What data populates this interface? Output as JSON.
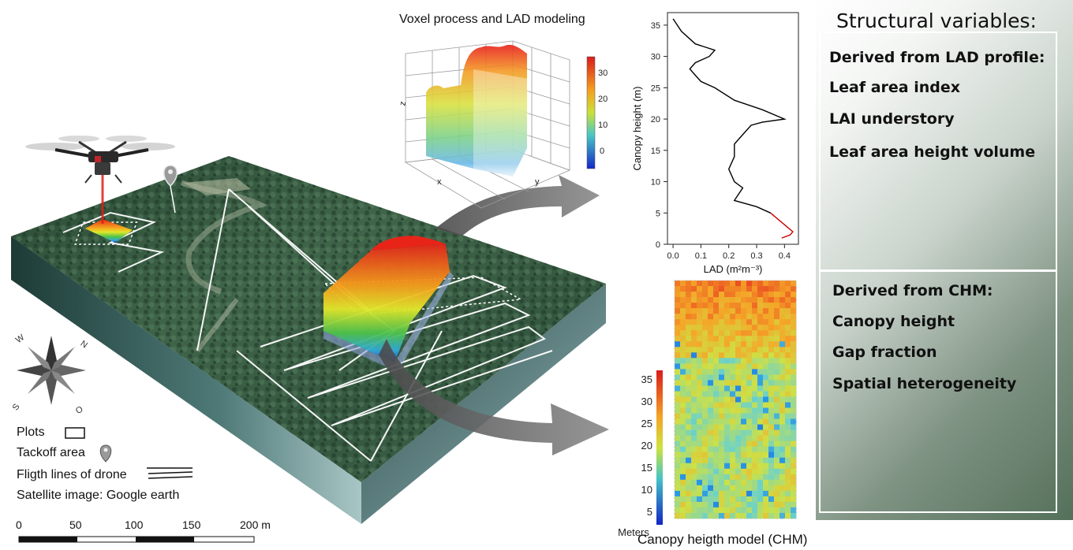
{
  "voxel": {
    "title": "Voxel process and LAD modeling",
    "axis_x": "x",
    "axis_y": "y",
    "axis_z": "z",
    "colorbar_ticks": [
      "30",
      "20",
      "10",
      "0"
    ]
  },
  "chart_data": [
    {
      "type": "line",
      "xlabel": "LAD (m²m⁻³)",
      "ylabel": "Canopy height (m)",
      "xlim": [
        -0.02,
        0.45
      ],
      "ylim": [
        0,
        37
      ],
      "x_ticks": [
        "0.0",
        "0.1",
        "0.2",
        "0.3",
        "0.4"
      ],
      "y_ticks": [
        "0",
        "5",
        "10",
        "15",
        "20",
        "25",
        "30",
        "35"
      ],
      "grid": false,
      "series": [
        {
          "color": "#000000",
          "points": [
            [
              0.0,
              36
            ],
            [
              0.03,
              34
            ],
            [
              0.08,
              32
            ],
            [
              0.15,
              31
            ],
            [
              0.13,
              30
            ],
            [
              0.08,
              29
            ],
            [
              0.06,
              28
            ],
            [
              0.08,
              27
            ],
            [
              0.1,
              26
            ],
            [
              0.15,
              25
            ],
            [
              0.22,
              23
            ],
            [
              0.32,
              21.5
            ],
            [
              0.4,
              20
            ],
            [
              0.32,
              19.5
            ],
            [
              0.28,
              19
            ],
            [
              0.24,
              17
            ],
            [
              0.22,
              16
            ],
            [
              0.22,
              14
            ],
            [
              0.2,
              12
            ],
            [
              0.22,
              10
            ],
            [
              0.25,
              9
            ],
            [
              0.22,
              7
            ],
            [
              0.3,
              6
            ],
            [
              0.35,
              5
            ]
          ]
        },
        {
          "color": "#cc0000",
          "points": [
            [
              0.35,
              5
            ],
            [
              0.39,
              3.5
            ],
            [
              0.43,
              2
            ],
            [
              0.42,
              1.5
            ],
            [
              0.39,
              1
            ]
          ]
        }
      ]
    },
    {
      "type": "heatmap",
      "title": "Canopy heigth model (CHM)",
      "colorbar_label": "Meters",
      "colorbar_ticks": [
        "35",
        "30",
        "25",
        "20",
        "15",
        "10",
        "5"
      ]
    }
  ],
  "legend": {
    "plots": "Plots",
    "takeoff": "Tackoff area",
    "flight": "Fligth lines of drone",
    "satellite": "Satellite image: Google earth"
  },
  "scalebar": {
    "ticks": [
      "0",
      "50",
      "100",
      "150",
      "200 m"
    ]
  },
  "compass": {
    "n": "N",
    "s": "S",
    "w": "W",
    "o": "O"
  },
  "variables": {
    "title": "Structural variables:",
    "lad_header": "Derived from LAD profile:",
    "lad_items": [
      "Leaf area index",
      "LAI understory",
      "Leaf area height volume"
    ],
    "chm_header": "Derived from CHM:",
    "chm_items": [
      "Canopy height",
      "Gap fraction",
      "Spatial heterogeneity"
    ]
  },
  "colors": {
    "forest_dark": "#1f3a2a",
    "forest_mid": "#3b5e45",
    "panel_dark": "#54705a",
    "lad_top": "#000000",
    "lad_understory": "#cc0000"
  }
}
